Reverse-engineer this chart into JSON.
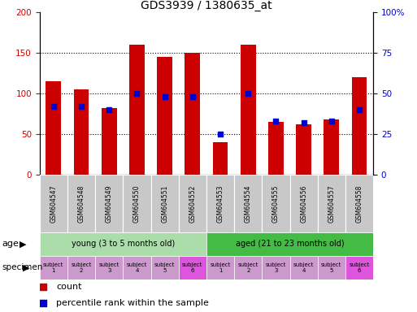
{
  "title": "GDS3939 / 1380635_at",
  "samples": [
    "GSM604547",
    "GSM604548",
    "GSM604549",
    "GSM604550",
    "GSM604551",
    "GSM604552",
    "GSM604553",
    "GSM604554",
    "GSM604555",
    "GSM604556",
    "GSM604557",
    "GSM604558"
  ],
  "counts": [
    115,
    105,
    82,
    160,
    145,
    150,
    40,
    160,
    65,
    62,
    68,
    120
  ],
  "percentile_ranks": [
    42,
    42,
    40,
    50,
    48,
    48,
    25,
    50,
    33,
    32,
    33,
    40
  ],
  "bar_color": "#cc0000",
  "marker_color": "#0000cc",
  "sample_box_color": "#c8c8c8",
  "age_groups": [
    {
      "label": "young (3 to 5 months old)",
      "start": 0,
      "end": 6,
      "color": "#aaddaa"
    },
    {
      "label": "aged (21 to 23 months old)",
      "start": 6,
      "end": 12,
      "color": "#44bb44"
    }
  ],
  "subject_colors": [
    "#cc99cc",
    "#cc99cc",
    "#cc99cc",
    "#cc99cc",
    "#cc99cc",
    "#dd55dd",
    "#cc99cc",
    "#cc99cc",
    "#cc99cc",
    "#cc99cc",
    "#cc99cc",
    "#dd55dd"
  ],
  "subject_labels": [
    "subject\n1",
    "subject\n2",
    "subject\n3",
    "subject\n4",
    "subject\n5",
    "subject\n6",
    "subject\n1",
    "subject\n2",
    "subject\n3",
    "subject\n4",
    "subject\n5",
    "subject\n6"
  ],
  "left_tick_color": "#cc0000",
  "right_tick_color": "#0000cc",
  "yticks_left": [
    0,
    50,
    100,
    150,
    200
  ],
  "yticks_right": [
    0,
    25,
    50,
    75,
    100
  ],
  "yticklabels_right": [
    "0",
    "25",
    "50",
    "75",
    "100%"
  ]
}
